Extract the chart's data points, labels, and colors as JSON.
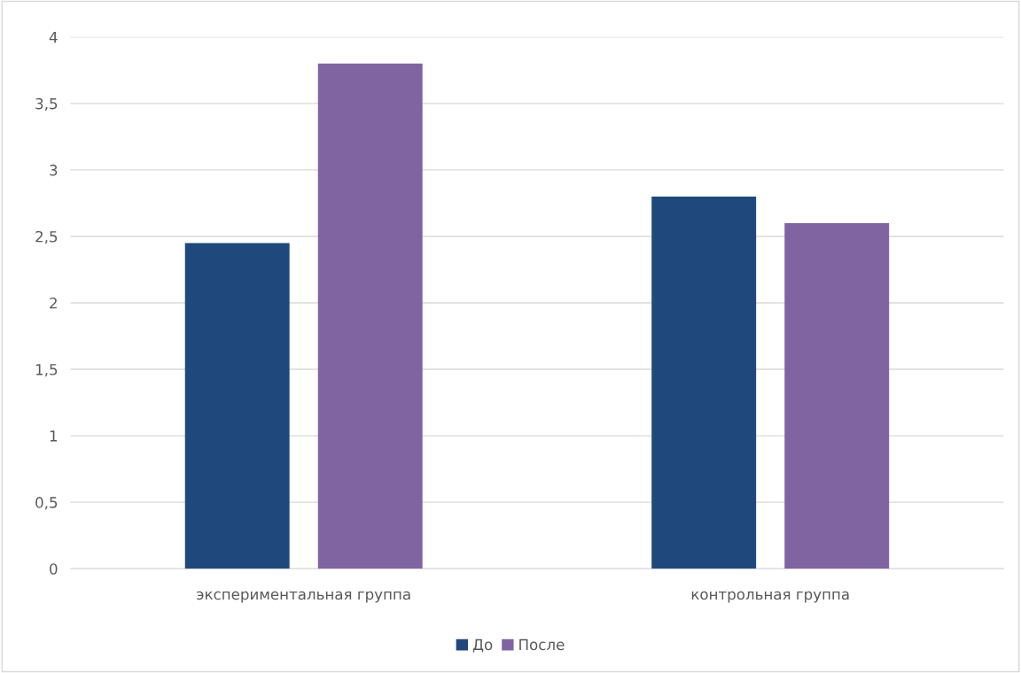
{
  "chart_data": {
    "type": "bar",
    "categories": [
      "экспериментальная группа",
      "контрольная группа"
    ],
    "series": [
      {
        "name": "До",
        "color": "#1f497d",
        "values": [
          2.45,
          2.8
        ]
      },
      {
        "name": "После",
        "color": "#8064a2",
        "values": [
          3.8,
          2.6
        ]
      }
    ],
    "ylim": [
      0,
      4
    ],
    "yticks": [
      0,
      {
        "value": 0.5,
        "label": "0,5"
      },
      1,
      {
        "value": 1.5,
        "label": "1,5"
      },
      2,
      {
        "value": 2.5,
        "label": "2,5"
      },
      3,
      {
        "value": 3.5,
        "label": "3,5"
      },
      4
    ],
    "grid": "y",
    "legend": "bottom"
  }
}
